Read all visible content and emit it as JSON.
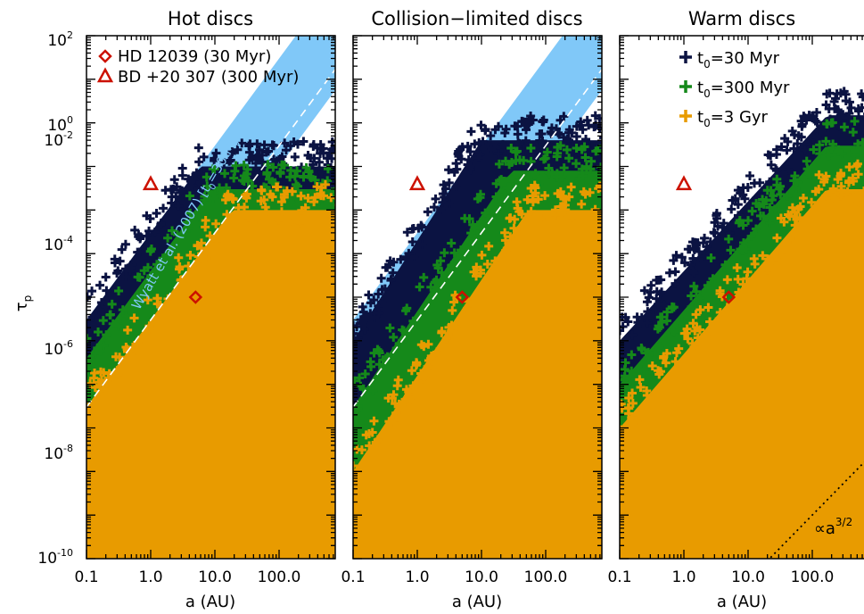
{
  "figure": {
    "ylabel_symbol": "τ",
    "ylabel_subscript": "p",
    "xlabel": "a (AU)"
  },
  "legend_points": {
    "diamond_label": "HD 12039 (30 Myr)",
    "triangle_label": "BD +20 307 (300 Myr)",
    "point_color": "#cc1100"
  },
  "legend_times": {
    "entries": [
      {
        "prefix": "t",
        "sub": "0",
        "value": "=30 Myr",
        "color": "#0b1342"
      },
      {
        "prefix": "t",
        "sub": "0",
        "value": "=300 Myr",
        "color": "#15891a"
      },
      {
        "prefix": "t",
        "sub": "0",
        "value": "=3 Gyr",
        "color": "#e89b00"
      }
    ]
  },
  "band_annotation": {
    "text_main": "Wyatt et al. (2007) [t",
    "text_sub": "0",
    "text_end": "=30 Myr]",
    "color": "#80c8f8"
  },
  "slope_annotation": {
    "base": "∝a",
    "exp": "3/2"
  },
  "chart_data": [
    {
      "type": "scatter",
      "title": "Hot discs",
      "xlabel": "a (AU)",
      "ylabel": "τp",
      "xscale": "log",
      "yscale": "log",
      "xlim": [
        0.1,
        800
      ],
      "ylim": [
        1e-10,
        100
      ],
      "x_ticks": [
        "0.1",
        "1.0",
        "10.0",
        "100.0"
      ],
      "y_ticks": [
        {
          "base": "10",
          "exp": "-10"
        },
        {
          "base": "10",
          "exp": "-8"
        },
        {
          "base": "10",
          "exp": "-6"
        },
        {
          "base": "10",
          "exp": "-4"
        },
        {
          "base": "10",
          "exp": "-2"
        },
        {
          "base": "10",
          "exp": "0"
        },
        {
          "base": "10",
          "exp": "2"
        }
      ],
      "band": {
        "upper_at_a0_1": 3e-05,
        "lower_at_a0_1": 1e-07,
        "slope": 2.0
      },
      "dashed_line": {
        "at_a0_1": 3e-07,
        "slope": 2.0
      },
      "observed_points": [
        {
          "name": "HD 12039 (30 Myr)",
          "marker": "diamond",
          "a": 5.0,
          "tau": 0.0001
        },
        {
          "name": "BD +20 307 (300 Myr)",
          "marker": "triangle",
          "a": 1.0,
          "tau": 0.04
        }
      ],
      "series": [
        {
          "name": "t0=30 Myr",
          "color": "#0b1342",
          "upper_at_a0_1": 3e-05,
          "slope": 2.0,
          "cap": 0.1,
          "fill_below": true
        },
        {
          "name": "t0=300 Myr",
          "color": "#15891a",
          "upper_at_a0_1": 4e-06,
          "slope": 2.0,
          "cap": 0.03,
          "fill_below": true
        },
        {
          "name": "t0=3 Gyr",
          "color": "#e89b00",
          "upper_at_a0_1": 3e-07,
          "slope": 2.0,
          "cap": 0.01,
          "fill_below": true
        }
      ]
    },
    {
      "type": "scatter",
      "title": "Collision−limited discs",
      "xlabel": "a (AU)",
      "xscale": "log",
      "yscale": "log",
      "xlim": [
        0.1,
        800
      ],
      "ylim": [
        1e-10,
        100
      ],
      "x_ticks": [
        "0.1",
        "1.0",
        "10.0",
        "100.0"
      ],
      "band": {
        "upper_at_a0_1": 3e-05,
        "lower_at_a0_1": 1e-07,
        "slope": 2.0
      },
      "dashed_line": {
        "at_a0_1": 3e-07,
        "slope": 2.0
      },
      "observed_points": [
        {
          "name": "HD 12039 (30 Myr)",
          "marker": "diamond",
          "a": 5.0,
          "tau": 0.0001
        },
        {
          "name": "BD +20 307 (300 Myr)",
          "marker": "triangle",
          "a": 1.0,
          "tau": 0.04
        }
      ],
      "series": [
        {
          "name": "t0=30 Myr",
          "color": "#0b1342",
          "upper_at_a0_1": 1e-05,
          "slope": 2.3,
          "cap": 0.4,
          "fill_below": true
        },
        {
          "name": "t0=300 Myr",
          "color": "#15891a",
          "upper_at_a0_1": 3e-07,
          "slope": 2.2,
          "cap": 0.08,
          "fill_below": true
        },
        {
          "name": "t0=3 Gyr",
          "color": "#e89b00",
          "upper_at_a0_1": 1e-08,
          "slope": 2.2,
          "cap": 0.01,
          "fill_below": true
        }
      ]
    },
    {
      "type": "scatter",
      "title": "Warm discs",
      "xlabel": "a (AU)",
      "xscale": "log",
      "yscale": "log",
      "xlim": [
        0.1,
        800
      ],
      "ylim": [
        1e-10,
        100
      ],
      "x_ticks": [
        "0.1",
        "1.0",
        "10.0",
        "100.0"
      ],
      "slope_line": {
        "at_a100": 1e-09,
        "slope": 1.5
      },
      "observed_points": [
        {
          "name": "HD 12039 (30 Myr)",
          "marker": "diamond",
          "a": 5.0,
          "tau": 0.0001
        },
        {
          "name": "BD +20 307 (300 Myr)",
          "marker": "triangle",
          "a": 1.0,
          "tau": 0.04
        }
      ],
      "series": [
        {
          "name": "t0=30 Myr",
          "color": "#0b1342",
          "upper_at_a0_1": 1e-05,
          "slope": 1.6,
          "cap": 1.5,
          "fill_below": true
        },
        {
          "name": "t0=300 Myr",
          "color": "#15891a",
          "upper_at_a0_1": 1e-06,
          "slope": 1.7,
          "cap": 0.3,
          "fill_below": true
        },
        {
          "name": "t0=3 Gyr",
          "color": "#e89b00",
          "upper_at_a0_1": 1e-07,
          "slope": 1.7,
          "cap": 0.03,
          "fill_below": true
        }
      ]
    }
  ]
}
